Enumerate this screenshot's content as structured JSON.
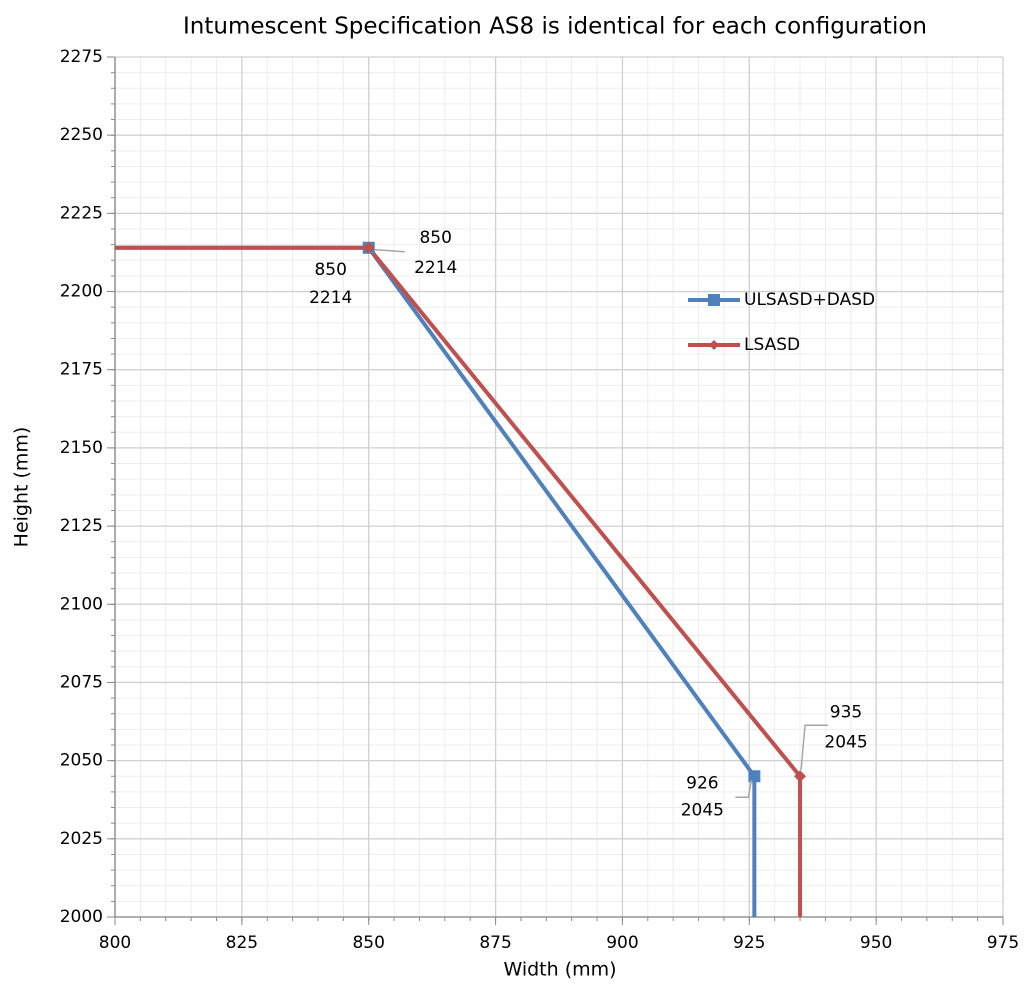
{
  "chart_data": {
    "type": "line",
    "title": "Intumescent Specification AS8 is identical for each configuration",
    "xlabel": "Width (mm)",
    "ylabel": "Height (mm)",
    "series": [
      {
        "name": "ULSASD+DASD",
        "color": "#4f81bd",
        "marker": "square",
        "x": [
          800,
          850,
          926,
          926
        ],
        "values": [
          2214,
          2214,
          2045,
          2000
        ],
        "markers": [
          false,
          true,
          true,
          false
        ]
      },
      {
        "name": "LSASD",
        "color": "#c0504d",
        "marker": "diamond",
        "x": [
          800,
          850,
          935,
          935
        ],
        "values": [
          2214,
          2214,
          2045,
          2000
        ],
        "markers": [
          false,
          true,
          true,
          false
        ]
      }
    ],
    "xlim": [
      800,
      975
    ],
    "xticks": [
      800,
      825,
      850,
      875,
      900,
      925,
      950,
      975
    ],
    "ylim": [
      2000,
      2275
    ],
    "yticks": [
      2000,
      2025,
      2050,
      2075,
      2100,
      2125,
      2150,
      2175,
      2200,
      2225,
      2250,
      2275
    ],
    "xminor": 5,
    "yminor": 5,
    "grid": true,
    "legend": "right"
  }
}
